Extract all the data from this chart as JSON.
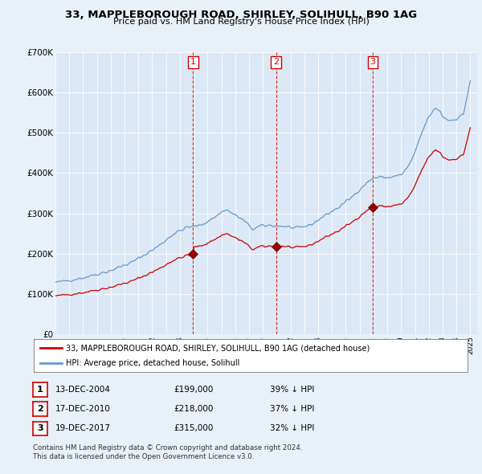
{
  "title": "33, MAPPLEBOROUGH ROAD, SHIRLEY, SOLIHULL, B90 1AG",
  "subtitle": "Price paid vs. HM Land Registry's House Price Index (HPI)",
  "background_color": "#e8f0f8",
  "plot_bg_color": "#dce8f5",
  "sale_dates_dec": [
    2004.95,
    2010.95,
    2017.95
  ],
  "sale_prices": [
    199000,
    218000,
    315000
  ],
  "sale_labels": [
    "1",
    "2",
    "3"
  ],
  "legend_line1": "33, MAPPLEBOROUGH ROAD, SHIRLEY, SOLIHULL, B90 1AG (detached house)",
  "legend_line2": "HPI: Average price, detached house, Solihull",
  "table_rows": [
    [
      "1",
      "13-DEC-2004",
      "£199,000",
      "39% ↓ HPI"
    ],
    [
      "2",
      "17-DEC-2010",
      "£218,000",
      "37% ↓ HPI"
    ],
    [
      "3",
      "19-DEC-2017",
      "£315,000",
      "32% ↓ HPI"
    ]
  ],
  "footnote1": "Contains HM Land Registry data © Crown copyright and database right 2024.",
  "footnote2": "This data is licensed under the Open Government Licence v3.0.",
  "ylim": [
    0,
    700000
  ],
  "yticks": [
    0,
    100000,
    200000,
    300000,
    400000,
    500000,
    600000,
    700000
  ],
  "ytick_labels": [
    "£0",
    "£100K",
    "£200K",
    "£300K",
    "£400K",
    "£500K",
    "£600K",
    "£700K"
  ],
  "red_color": "#cc0000",
  "blue_color": "#6699cc",
  "vline_color": "#cc0000",
  "xlim_start": 1995.0,
  "xlim_end": 2025.5
}
